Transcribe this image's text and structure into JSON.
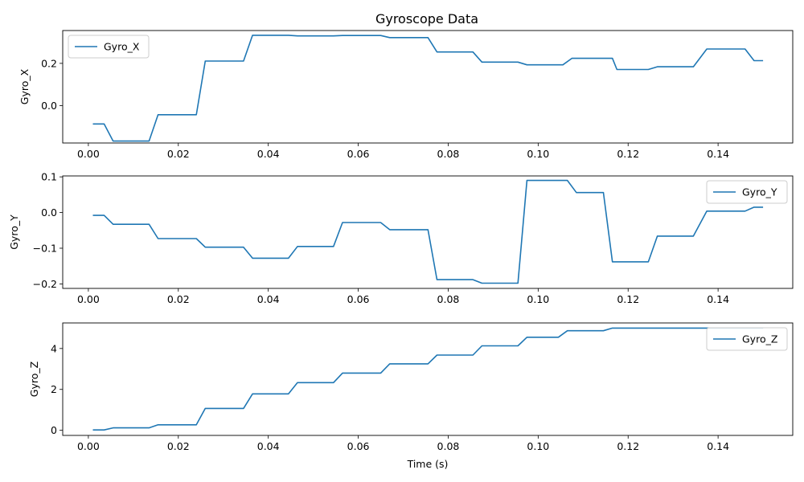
{
  "figure": {
    "title": "Gyroscope Data",
    "line_color": "#1f77b4"
  },
  "chart_data": [
    {
      "type": "line",
      "title": "Gyroscope Data",
      "xlabel": "",
      "ylabel": "Gyro_X",
      "legend": "upper left",
      "grid": false,
      "xlim": [
        -0.0057,
        0.1566
      ],
      "ylim": [
        -0.1771,
        0.3555
      ],
      "xticks": [
        0.0,
        0.02,
        0.04,
        0.06,
        0.08,
        0.1,
        0.12,
        0.14
      ],
      "xtick_labels": [
        "0.00",
        "0.02",
        "0.04",
        "0.06",
        "0.08",
        "0.10",
        "0.12",
        "0.14"
      ],
      "yticks": [
        0.0,
        0.2
      ],
      "ytick_labels": [
        "0.0",
        "0.2"
      ],
      "series": [
        {
          "name": "Gyro_X",
          "x": [
            0.001,
            0.0035,
            0.0055,
            0.0135,
            0.0155,
            0.024,
            0.026,
            0.0345,
            0.0365,
            0.0445,
            0.0465,
            0.0545,
            0.0565,
            0.065,
            0.067,
            0.0755,
            0.0775,
            0.0855,
            0.0875,
            0.0955,
            0.0975,
            0.1055,
            0.1075,
            0.1165,
            0.1175,
            0.1245,
            0.1265,
            0.1345,
            0.1375,
            0.146,
            0.148,
            0.15
          ],
          "y": [
            -0.087,
            -0.087,
            -0.168,
            -0.168,
            -0.043,
            -0.043,
            0.211,
            0.211,
            0.333,
            0.333,
            0.33,
            0.33,
            0.332,
            0.332,
            0.322,
            0.322,
            0.254,
            0.254,
            0.206,
            0.206,
            0.193,
            0.193,
            0.224,
            0.224,
            0.171,
            0.171,
            0.184,
            0.184,
            0.268,
            0.268,
            0.213,
            0.213
          ]
        }
      ]
    },
    {
      "type": "line",
      "title": "",
      "xlabel": "",
      "ylabel": "Gyro_Y",
      "legend": "upper right",
      "grid": false,
      "xlim": [
        -0.0057,
        0.1566
      ],
      "ylim": [
        -0.2126,
        0.1026
      ],
      "xticks": [
        0.0,
        0.02,
        0.04,
        0.06,
        0.08,
        0.1,
        0.12,
        0.14
      ],
      "xtick_labels": [
        "0.00",
        "0.02",
        "0.04",
        "0.06",
        "0.08",
        "0.10",
        "0.12",
        "0.14"
      ],
      "yticks": [
        -0.2,
        -0.1,
        0.0,
        0.1
      ],
      "ytick_labels": [
        "−0.2",
        "−0.1",
        "0.0",
        "0.1"
      ],
      "series": [
        {
          "name": "Gyro_Y",
          "x": [
            0.001,
            0.0035,
            0.0055,
            0.0135,
            0.0155,
            0.024,
            0.026,
            0.0345,
            0.0365,
            0.0445,
            0.0465,
            0.0545,
            0.0565,
            0.065,
            0.067,
            0.0755,
            0.0775,
            0.0855,
            0.0875,
            0.0955,
            0.0975,
            0.1065,
            0.1085,
            0.1145,
            0.1165,
            0.1245,
            0.1265,
            0.1345,
            0.1375,
            0.146,
            0.148,
            0.15
          ],
          "y": [
            -0.008,
            -0.008,
            -0.033,
            -0.033,
            -0.073,
            -0.073,
            -0.097,
            -0.097,
            -0.128,
            -0.128,
            -0.095,
            -0.095,
            -0.028,
            -0.028,
            -0.048,
            -0.048,
            -0.188,
            -0.188,
            -0.198,
            -0.198,
            0.09,
            0.09,
            0.056,
            0.056,
            -0.138,
            -0.138,
            -0.066,
            -0.066,
            0.004,
            0.004,
            0.015,
            0.015
          ]
        }
      ]
    },
    {
      "type": "line",
      "title": "",
      "xlabel": "Time (s)",
      "ylabel": "Gyro_Z",
      "legend": "upper right",
      "grid": false,
      "xlim": [
        -0.0057,
        0.1566
      ],
      "ylim": [
        -0.249,
        5.25
      ],
      "xticks": [
        0.0,
        0.02,
        0.04,
        0.06,
        0.08,
        0.1,
        0.12,
        0.14
      ],
      "xtick_labels": [
        "0.00",
        "0.02",
        "0.04",
        "0.06",
        "0.08",
        "0.10",
        "0.12",
        "0.14"
      ],
      "yticks": [
        0,
        2,
        4
      ],
      "ytick_labels": [
        "0",
        "2",
        "4"
      ],
      "series": [
        {
          "name": "Gyro_Z",
          "x": [
            0.001,
            0.0035,
            0.0055,
            0.0135,
            0.0155,
            0.024,
            0.026,
            0.0345,
            0.0365,
            0.0445,
            0.0465,
            0.0545,
            0.0565,
            0.065,
            0.067,
            0.0755,
            0.0775,
            0.0855,
            0.0875,
            0.0955,
            0.0975,
            0.1045,
            0.1065,
            0.1145,
            0.1165,
            0.1245,
            0.1265,
            0.15
          ],
          "y": [
            0.02,
            0.02,
            0.12,
            0.12,
            0.27,
            0.27,
            1.07,
            1.07,
            1.78,
            1.78,
            2.33,
            2.33,
            2.8,
            2.8,
            3.25,
            3.25,
            3.68,
            3.68,
            4.13,
            4.13,
            4.55,
            4.55,
            4.87,
            4.87,
            5.0,
            5.0,
            5.0,
            5.0
          ]
        }
      ]
    }
  ]
}
